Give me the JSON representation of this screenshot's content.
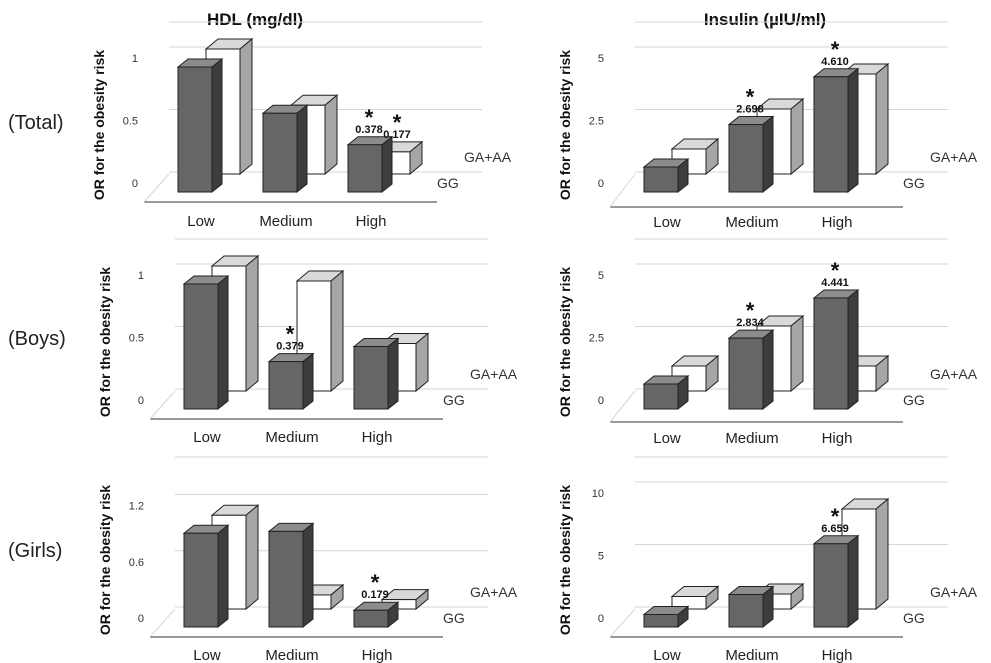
{
  "column_titles": [
    "HDL (mg/dl)",
    "Insulin (µIU/ml)"
  ],
  "row_labels": [
    "(Total)",
    "(Boys)",
    "(Girls)"
  ],
  "colors": {
    "gg_front": "#666666",
    "gg_top": "#8c8c8c",
    "gg_side": "#3d3d3d",
    "ga_front": "#ffffff",
    "ga_top": "#d9d9d9",
    "ga_side": "#a6a6a6",
    "grid": "#d6d6d6",
    "axis": "#333333"
  },
  "chart_data": [
    {
      "type": "bar",
      "group": "(Total)",
      "measure": "HDL (mg/dl)",
      "ylabel": "OR  for the obesity risk",
      "categories": [
        "Low",
        "Medium",
        "High"
      ],
      "ylim": [
        0,
        1.2
      ],
      "yticks": [
        0,
        0.5,
        1
      ],
      "ytick_labels": [
        "0",
        "0.5",
        "1"
      ],
      "series": [
        {
          "name": "GG",
          "values": [
            1.0,
            0.63,
            0.378
          ]
        },
        {
          "name": "GA+AA",
          "values": [
            1.0,
            0.55,
            0.177
          ]
        }
      ],
      "annotations": [
        {
          "category": "High",
          "series": "GG",
          "text": "0.378",
          "marker": "*"
        },
        {
          "category": "High",
          "series": "GA+AA",
          "text": "0.177",
          "marker": "*"
        }
      ]
    },
    {
      "type": "bar",
      "group": "(Total)",
      "measure": "Insulin (µIU/ml)",
      "ylabel": "OR  for the obesity risk",
      "categories": [
        "Low",
        "Medium",
        "High"
      ],
      "ylim": [
        0,
        6
      ],
      "yticks": [
        0,
        2.5,
        5
      ],
      "ytick_labels": [
        "0",
        "2.5",
        "5"
      ],
      "series": [
        {
          "name": "GG",
          "values": [
            1.0,
            2.698,
            4.61
          ]
        },
        {
          "name": "GA+AA",
          "values": [
            1.0,
            2.6,
            4.0
          ]
        }
      ],
      "annotations": [
        {
          "category": "Medium",
          "series": "GG",
          "text": "2.698",
          "marker": "*"
        },
        {
          "category": "High",
          "series": "GG",
          "text": "4.610",
          "marker": "*"
        }
      ]
    },
    {
      "type": "bar",
      "group": "(Boys)",
      "measure": "HDL (mg/dl)",
      "ylabel": "OR  for the obesity risk",
      "categories": [
        "Low",
        "Medium",
        "High"
      ],
      "ylim": [
        0,
        1.2
      ],
      "yticks": [
        0,
        0.5,
        1
      ],
      "ytick_labels": [
        "0",
        "0.5",
        "1"
      ],
      "series": [
        {
          "name": "GG",
          "values": [
            1.0,
            0.379,
            0.5
          ]
        },
        {
          "name": "GA+AA",
          "values": [
            1.0,
            0.88,
            0.38
          ]
        }
      ],
      "annotations": [
        {
          "category": "Medium",
          "series": "GG",
          "text": "0.379",
          "marker": "*"
        }
      ]
    },
    {
      "type": "bar",
      "group": "(Boys)",
      "measure": "Insulin (µIU/ml)",
      "ylabel": "OR  for the obesity risk",
      "categories": [
        "Low",
        "Medium",
        "High"
      ],
      "ylim": [
        0,
        6
      ],
      "yticks": [
        0,
        2.5,
        5
      ],
      "ytick_labels": [
        "0",
        "2.5",
        "5"
      ],
      "series": [
        {
          "name": "GG",
          "values": [
            1.0,
            2.834,
            4.441
          ]
        },
        {
          "name": "GA+AA",
          "values": [
            1.0,
            2.6,
            1.0
          ]
        }
      ],
      "annotations": [
        {
          "category": "Medium",
          "series": "GG",
          "text": "2.834",
          "marker": "*"
        },
        {
          "category": "High",
          "series": "GG",
          "text": "4.441",
          "marker": "*"
        }
      ]
    },
    {
      "type": "bar",
      "group": "(Girls)",
      "measure": "HDL (mg/dl)",
      "ylabel": "OR  for the obesity risk",
      "categories": [
        "Low",
        "Medium",
        "High"
      ],
      "ylim": [
        0,
        1.6
      ],
      "yticks": [
        0,
        0.6,
        1.2
      ],
      "ytick_labels": [
        "0",
        "0.6",
        "1.2"
      ],
      "series": [
        {
          "name": "GG",
          "values": [
            1.0,
            1.02,
            0.179
          ]
        },
        {
          "name": "GA+AA",
          "values": [
            1.0,
            0.15,
            0.1
          ]
        }
      ],
      "annotations": [
        {
          "category": "High",
          "series": "GG",
          "text": "0.179",
          "marker": "*"
        }
      ]
    },
    {
      "type": "bar",
      "group": "(Girls)",
      "measure": "Insulin (µIU/ml)",
      "ylabel": "OR  for the obesity risk",
      "categories": [
        "Low",
        "Medium",
        "High"
      ],
      "ylim": [
        0,
        12
      ],
      "yticks": [
        0,
        5,
        10
      ],
      "ytick_labels": [
        "0",
        "5",
        "10"
      ],
      "series": [
        {
          "name": "GG",
          "values": [
            1.0,
            2.6,
            6.659
          ]
        },
        {
          "name": "GA+AA",
          "values": [
            1.0,
            1.2,
            8.0
          ]
        }
      ],
      "annotations": [
        {
          "category": "High",
          "series": "GG",
          "text": "6.659",
          "marker": "*"
        }
      ]
    }
  ]
}
